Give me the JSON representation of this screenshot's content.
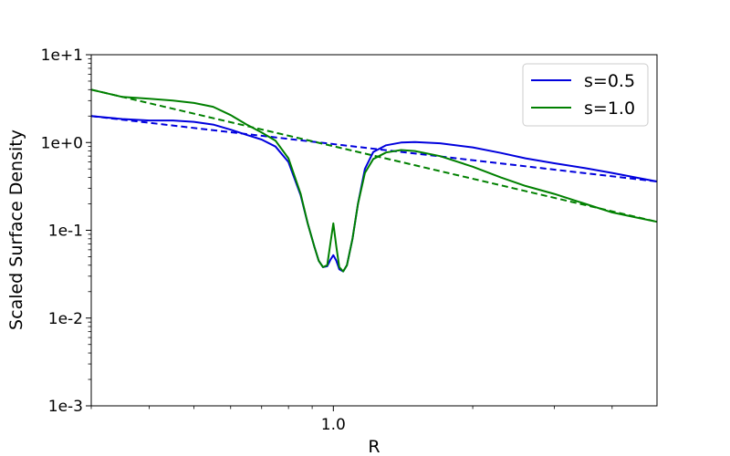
{
  "chart_data": {
    "type": "line",
    "title": "",
    "xlabel": "R",
    "ylabel": "Scaled Surface Density",
    "xscale": "log",
    "yscale": "log",
    "xlim": [
      0.3,
      5.0
    ],
    "ylim": [
      0.001,
      10
    ],
    "x_ticks": [
      {
        "value": 1.0,
        "label": "1.0"
      }
    ],
    "y_ticks": [
      {
        "value": 0.001,
        "label": "1e-3"
      },
      {
        "value": 0.01,
        "label": "1e-2"
      },
      {
        "value": 0.1,
        "label": "1e-1"
      },
      {
        "value": 1,
        "label": "1e+0"
      },
      {
        "value": 10,
        "label": "1e+1"
      }
    ],
    "legend_position": "top-right",
    "grid": false,
    "series": [
      {
        "name": "s=0.5",
        "color": "#0000dd",
        "style": "solid",
        "points": [
          [
            0.3,
            2.0
          ],
          [
            0.35,
            1.85
          ],
          [
            0.4,
            1.78
          ],
          [
            0.45,
            1.78
          ],
          [
            0.5,
            1.72
          ],
          [
            0.55,
            1.6
          ],
          [
            0.6,
            1.4
          ],
          [
            0.65,
            1.22
          ],
          [
            0.7,
            1.08
          ],
          [
            0.75,
            0.9
          ],
          [
            0.8,
            0.6
          ],
          [
            0.85,
            0.25
          ],
          [
            0.88,
            0.12
          ],
          [
            0.91,
            0.065
          ],
          [
            0.93,
            0.045
          ],
          [
            0.95,
            0.038
          ],
          [
            0.97,
            0.039
          ],
          [
            0.985,
            0.046
          ],
          [
            1.0,
            0.052
          ],
          [
            1.015,
            0.045
          ],
          [
            1.03,
            0.036
          ],
          [
            1.05,
            0.034
          ],
          [
            1.07,
            0.04
          ],
          [
            1.1,
            0.08
          ],
          [
            1.13,
            0.2
          ],
          [
            1.17,
            0.5
          ],
          [
            1.22,
            0.78
          ],
          [
            1.3,
            0.93
          ],
          [
            1.4,
            1.0
          ],
          [
            1.5,
            1.01
          ],
          [
            1.7,
            0.98
          ],
          [
            2.0,
            0.88
          ],
          [
            2.3,
            0.76
          ],
          [
            2.6,
            0.66
          ],
          [
            3.0,
            0.58
          ],
          [
            3.5,
            0.51
          ],
          [
            4.0,
            0.45
          ],
          [
            4.5,
            0.4
          ],
          [
            5.0,
            0.36
          ]
        ]
      },
      {
        "name": "s=1.0",
        "color": "#008000",
        "style": "solid",
        "points": [
          [
            0.3,
            4.0
          ],
          [
            0.35,
            3.3
          ],
          [
            0.4,
            3.15
          ],
          [
            0.45,
            3.0
          ],
          [
            0.5,
            2.82
          ],
          [
            0.55,
            2.55
          ],
          [
            0.6,
            2.05
          ],
          [
            0.65,
            1.6
          ],
          [
            0.7,
            1.3
          ],
          [
            0.75,
            1.05
          ],
          [
            0.8,
            0.66
          ],
          [
            0.85,
            0.26
          ],
          [
            0.88,
            0.12
          ],
          [
            0.91,
            0.065
          ],
          [
            0.93,
            0.045
          ],
          [
            0.95,
            0.038
          ],
          [
            0.97,
            0.04
          ],
          [
            0.985,
            0.07
          ],
          [
            1.0,
            0.12
          ],
          [
            1.015,
            0.065
          ],
          [
            1.03,
            0.038
          ],
          [
            1.05,
            0.034
          ],
          [
            1.07,
            0.04
          ],
          [
            1.1,
            0.08
          ],
          [
            1.13,
            0.2
          ],
          [
            1.17,
            0.45
          ],
          [
            1.22,
            0.65
          ],
          [
            1.3,
            0.77
          ],
          [
            1.4,
            0.82
          ],
          [
            1.5,
            0.8
          ],
          [
            1.7,
            0.7
          ],
          [
            2.0,
            0.53
          ],
          [
            2.3,
            0.4
          ],
          [
            2.6,
            0.32
          ],
          [
            3.0,
            0.26
          ],
          [
            3.5,
            0.2
          ],
          [
            4.0,
            0.16
          ],
          [
            4.5,
            0.14
          ],
          [
            5.0,
            0.125
          ]
        ]
      },
      {
        "color": "#0000dd",
        "style": "dashed",
        "points": [
          [
            0.3,
            2.0
          ],
          [
            5.0,
            0.36
          ]
        ]
      },
      {
        "color": "#008000",
        "style": "dashed",
        "points": [
          [
            0.3,
            4.0
          ],
          [
            5.0,
            0.125
          ]
        ]
      }
    ]
  }
}
